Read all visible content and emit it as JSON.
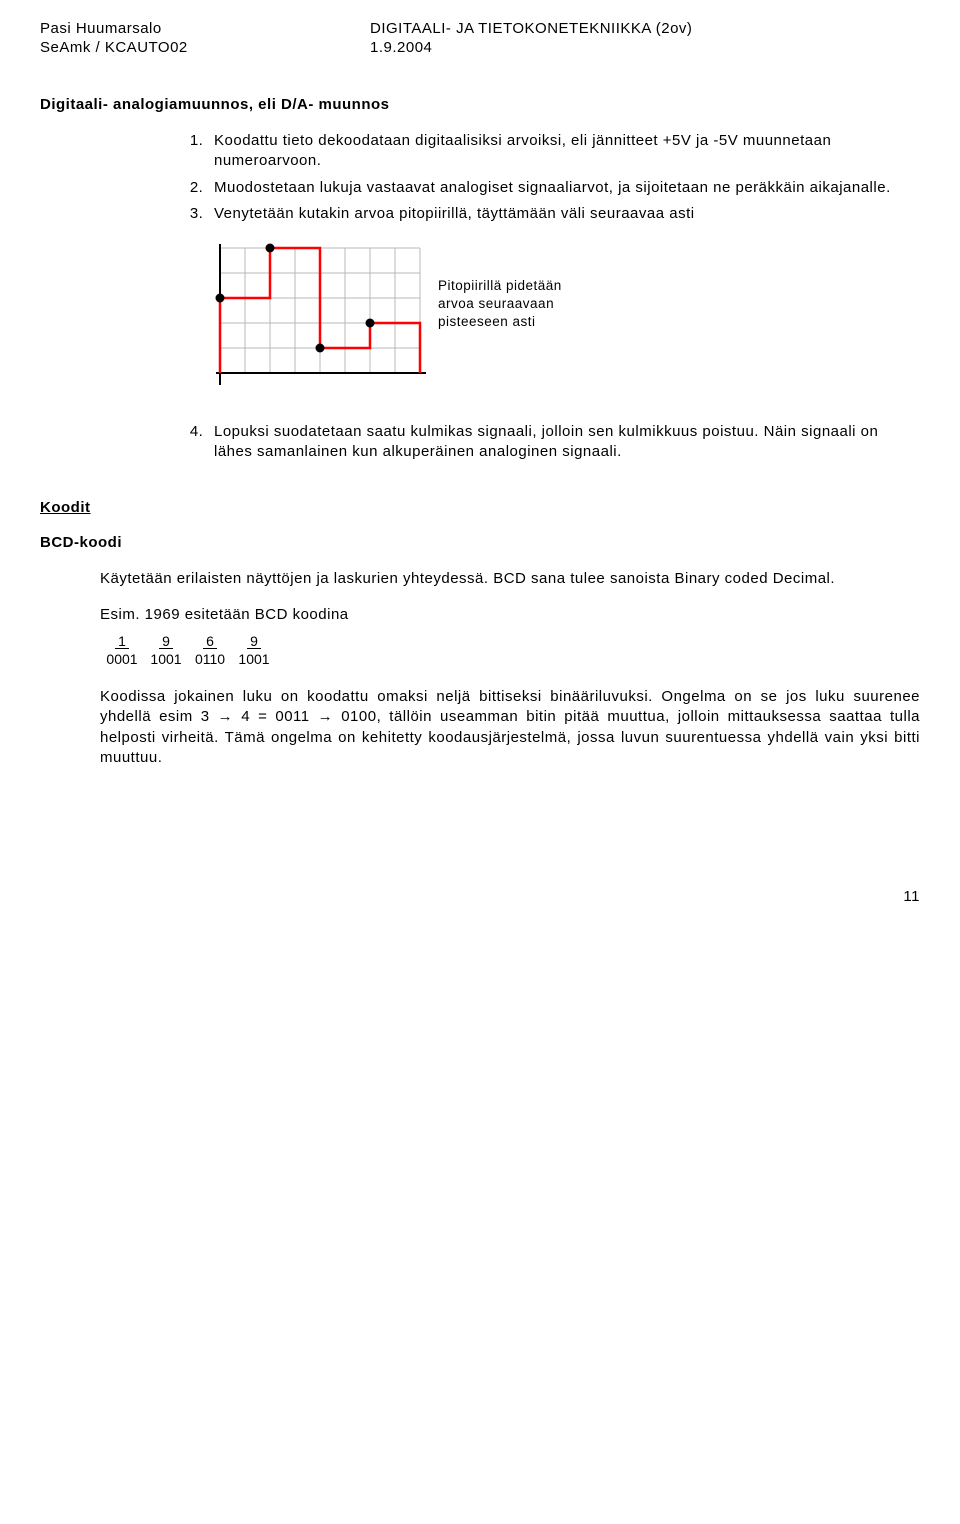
{
  "header": {
    "author": "Pasi Huumarsalo",
    "org": "SeAmk / KCAUTO02",
    "course": "DIGITAALI- JA TIETOKONETEKNIIKKA (2ov)",
    "date": "1.9.2004"
  },
  "title": "Digitaali- analogiamuunnos, eli D/A- muunnos",
  "list": {
    "item1": "Koodattu tieto dekoodataan digitaalisiksi arvoiksi, eli jännitteet +5V ja -5V muunnetaan numeroarvoon.",
    "item2": "Muodostetaan lukuja vastaavat analogiset signaaliarvot, ja sijoitetaan ne peräkkäin aikajanalle.",
    "item3": "Venytetään kutakin arvoa pitopiirillä, täyttämään väli seuraavaa asti",
    "item4": "Lopuksi suodatetaan saatu kulmikas signaali, jolloin sen kulmikkuus poistuu. Näin signaali on lähes samanlainen kun alkuperäinen analoginen signaali."
  },
  "diagram": {
    "grid_color": "#b8b8b8",
    "axis_color": "#000000",
    "step_color": "#ff0000",
    "point_color": "#000000",
    "background": "#ffffff",
    "cell": 25,
    "cols": 8,
    "rows": 5,
    "y_values": [
      3,
      3,
      5,
      5,
      1,
      1,
      2,
      2
    ],
    "points_x": [
      0,
      2,
      4,
      6
    ],
    "label_line1": "Pitopiirillä pidetään",
    "label_line2": "arvoa seuraavaan",
    "label_line3": "pisteeseen asti"
  },
  "koodit_heading": "Koodit",
  "bcd_heading": "BCD-koodi",
  "bcd_para1": "Käytetään erilaisten näyttöjen ja laskurien yhteydessä. BCD sana tulee sanoista Binary coded Decimal.",
  "bcd_esim": "Esim. 1969 esitetään BCD koodina",
  "bcd_example": {
    "digits": [
      "1",
      "9",
      "6",
      "9"
    ],
    "codes": [
      "0001",
      "1001",
      "0110",
      "1001"
    ]
  },
  "bcd_para2": "Koodissa jokainen luku on koodattu omaksi neljä bittiseksi binääriluvuksi. Ongelma on se jos luku suurenee yhdellä esim 3 → 4 = 0011 → 0100, tällöin useamman bitin pitää muuttua, jolloin mittauksessa saattaa tulla helposti virheitä. Tämä ongelma on kehitetty koodausjärjestelmä, jossa luvun suurentuessa yhdellä vain yksi bitti muuttuu.",
  "page_number": "11"
}
